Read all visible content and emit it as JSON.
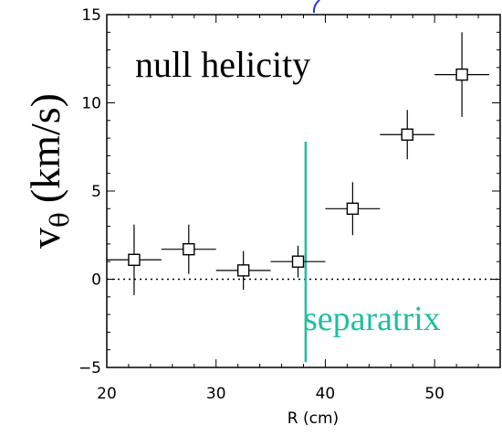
{
  "chart_data": {
    "type": "scatter",
    "title": "",
    "xlabel": "R (cm)",
    "ylabel_main": "v",
    "ylabel_sub": "θ",
    "ylabel_units": "(km/s)",
    "xlim": [
      20,
      56
    ],
    "ylim": [
      -5,
      15
    ],
    "x_ticks": [
      20,
      30,
      40,
      50
    ],
    "y_ticks": [
      -5,
      0,
      5,
      10,
      15
    ],
    "x_tick_labels": [
      "20",
      "30",
      "40",
      "50"
    ],
    "y_tick_labels": [
      "−5",
      "0",
      "5",
      "10",
      "15"
    ],
    "grid": false,
    "marker": "open-square",
    "series": [
      {
        "points": [
          {
            "x": 22.5,
            "y": 1.1,
            "xerr": 2.5,
            "yerr_low": 2.0,
            "yerr_high": 2.0
          },
          {
            "x": 27.5,
            "y": 1.7,
            "xerr": 2.5,
            "yerr_low": 1.4,
            "yerr_high": 1.4
          },
          {
            "x": 32.5,
            "y": 0.5,
            "xerr": 2.5,
            "yerr_low": 1.1,
            "yerr_high": 1.1
          },
          {
            "x": 37.5,
            "y": 1.0,
            "xerr": 2.5,
            "yerr_low": 0.9,
            "yerr_high": 0.9
          },
          {
            "x": 42.5,
            "y": 4.0,
            "xerr": 2.5,
            "yerr_low": 1.5,
            "yerr_high": 1.5
          },
          {
            "x": 47.5,
            "y": 8.2,
            "xerr": 2.5,
            "yerr_low": 1.4,
            "yerr_high": 1.4
          },
          {
            "x": 52.5,
            "y": 11.6,
            "xerr": 2.5,
            "yerr_low": 2.4,
            "yerr_high": 2.4
          }
        ]
      }
    ],
    "reference_line": {
      "y": 0,
      "style": "dotted"
    },
    "separatrix": {
      "x": 38.2,
      "y_from": -4.7,
      "y_to": 7.8,
      "color": "#1fbf9f",
      "label": "separatrix"
    },
    "annotation": "null helicity"
  }
}
